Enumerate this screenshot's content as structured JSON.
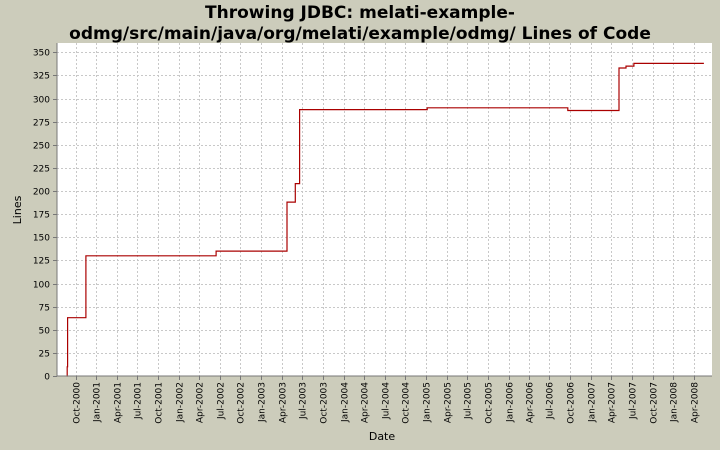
{
  "chart_data": {
    "type": "line",
    "line_style": "step",
    "title_lines": [
      "Throwing JDBC: melati-example-",
      "odmg/src/main/java/org/melati/example/odmg/ Lines of Code"
    ],
    "xlabel": "Date",
    "ylabel": "Lines",
    "ylim": [
      0,
      360
    ],
    "xlim": [
      "2000-07-10",
      "2008-06-20"
    ],
    "grid": true,
    "y_ticks": [
      0,
      25,
      50,
      75,
      100,
      125,
      150,
      175,
      200,
      225,
      250,
      275,
      300,
      325,
      350
    ],
    "x_ticks": [
      {
        "date": "2000-10-01",
        "label": "Oct-2000"
      },
      {
        "date": "2001-01-01",
        "label": "Jan-2001"
      },
      {
        "date": "2001-04-01",
        "label": "Apr-2001"
      },
      {
        "date": "2001-07-01",
        "label": "Jul-2001"
      },
      {
        "date": "2001-10-01",
        "label": "Oct-2001"
      },
      {
        "date": "2002-01-01",
        "label": "Jan-2002"
      },
      {
        "date": "2002-04-01",
        "label": "Apr-2002"
      },
      {
        "date": "2002-07-01",
        "label": "Jul-2002"
      },
      {
        "date": "2002-10-01",
        "label": "Oct-2002"
      },
      {
        "date": "2003-01-01",
        "label": "Jan-2003"
      },
      {
        "date": "2003-04-01",
        "label": "Apr-2003"
      },
      {
        "date": "2003-07-01",
        "label": "Jul-2003"
      },
      {
        "date": "2003-10-01",
        "label": "Oct-2003"
      },
      {
        "date": "2004-01-01",
        "label": "Jan-2004"
      },
      {
        "date": "2004-04-01",
        "label": "Apr-2004"
      },
      {
        "date": "2004-07-01",
        "label": "Jul-2004"
      },
      {
        "date": "2004-10-01",
        "label": "Oct-2004"
      },
      {
        "date": "2005-01-01",
        "label": "Jan-2005"
      },
      {
        "date": "2005-04-01",
        "label": "Apr-2005"
      },
      {
        "date": "2005-07-01",
        "label": "Jul-2005"
      },
      {
        "date": "2005-10-01",
        "label": "Oct-2005"
      },
      {
        "date": "2006-01-01",
        "label": "Jan-2006"
      },
      {
        "date": "2006-04-01",
        "label": "Apr-2006"
      },
      {
        "date": "2006-07-01",
        "label": "Jul-2006"
      },
      {
        "date": "2006-10-01",
        "label": "Oct-2006"
      },
      {
        "date": "2007-01-01",
        "label": "Jan-2007"
      },
      {
        "date": "2007-04-01",
        "label": "Apr-2007"
      },
      {
        "date": "2007-07-01",
        "label": "Jul-2007"
      },
      {
        "date": "2007-10-01",
        "label": "Oct-2007"
      },
      {
        "date": "2008-01-01",
        "label": "Jan-2008"
      },
      {
        "date": "2008-04-01",
        "label": "Apr-2008"
      }
    ],
    "series": [
      {
        "color": "#aa0000",
        "points": [
          {
            "x": "2000-08-22",
            "y": 0
          },
          {
            "x": "2000-08-24",
            "y": 10
          },
          {
            "x": "2000-08-26",
            "y": 63
          },
          {
            "x": "2000-11-15",
            "y": 130
          },
          {
            "x": "2002-06-15",
            "y": 135
          },
          {
            "x": "2003-04-25",
            "y": 188
          },
          {
            "x": "2003-06-01",
            "y": 208
          },
          {
            "x": "2003-06-20",
            "y": 288
          },
          {
            "x": "2005-01-05",
            "y": 290
          },
          {
            "x": "2006-09-20",
            "y": 287
          },
          {
            "x": "2007-05-05",
            "y": 333
          },
          {
            "x": "2007-06-05",
            "y": 335
          },
          {
            "x": "2007-07-10",
            "y": 338
          },
          {
            "x": "2008-05-15",
            "y": 338
          }
        ]
      }
    ]
  },
  "colors": {
    "page_background": "#ccccbb",
    "plot_background": "#ffffff",
    "gridline": "#c8c8c8",
    "axis": "#777777",
    "series": "#aa0000"
  }
}
